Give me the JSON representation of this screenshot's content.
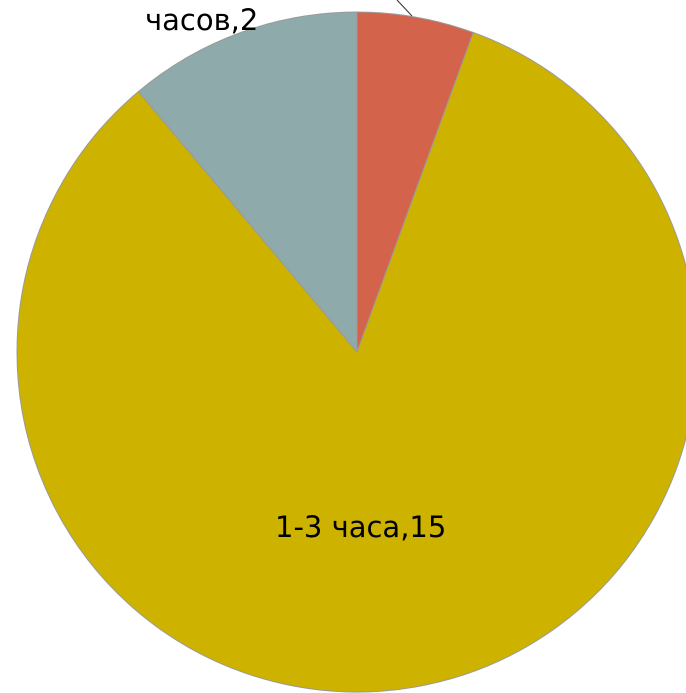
{
  "chart_data": {
    "type": "pie",
    "slices": [
      {
        "label": "",
        "value": 1,
        "color": "#D3644B"
      },
      {
        "label": "1-3 часа",
        "value": 15,
        "color": "#CDB200"
      },
      {
        "label": "часов",
        "value": 2,
        "color": "#8EAAAA"
      }
    ],
    "data_labels": [
      {
        "text": "1-3 часа,15"
      },
      {
        "text": "часов,2"
      }
    ]
  }
}
